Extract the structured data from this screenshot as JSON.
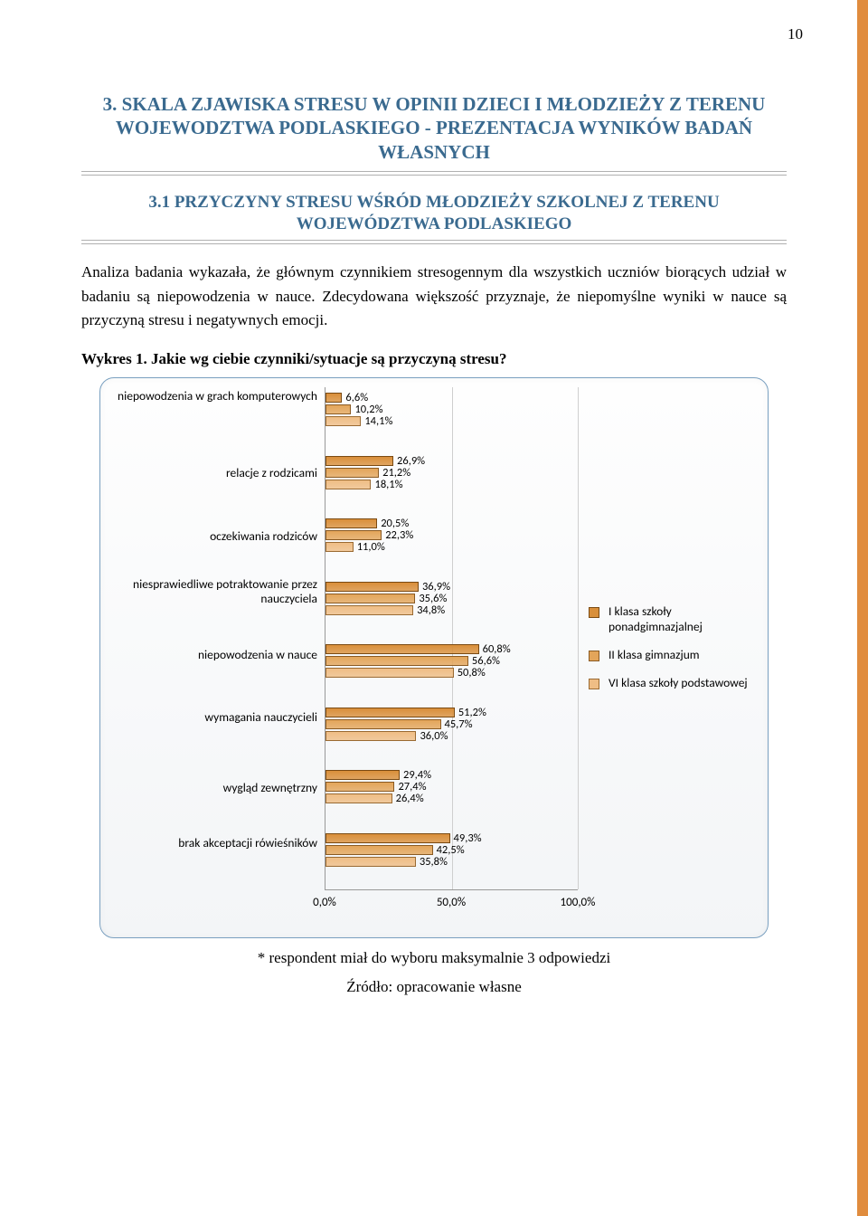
{
  "page_number": "10",
  "heading_main": "3. SKALA ZJAWISKA STRESU W OPINII DZIECI I MŁODZIEŻY Z TERENU WOJEWODZTWA PODLASKIEGO - PREZENTACJA WYNIKÓW BADAŃ WŁASNYCH",
  "heading_sub": "3.1 PRZYCZYNY STRESU WŚRÓD MŁODZIEŻY SZKOLNEJ Z TERENU WOJEWÓDZTWA PODLASKIEGO",
  "para1": "Analiza badania wykazała, że głównym czynnikiem stresogennym dla wszystkich uczniów biorących udział w badaniu są niepowodzenia w nauce. Zdecydowana większość przyznaje, że niepomyślne wyniki w nauce są przyczyną stresu i negatywnych emocji.",
  "chart_title": "Wykres 1. Jakie wg ciebie czynniki/sytuacje są przyczyną stresu?",
  "footnote1": "* respondent miał do wyboru maksymalnie 3 odpowiedzi",
  "footnote2": "Źródło: opracowanie własne",
  "chart": {
    "type": "bar-horizontal-grouped",
    "xlim": [
      0,
      100
    ],
    "xticks": [
      "0,0%",
      "50,0%",
      "100,0%"
    ],
    "xtick_positions": [
      0,
      50,
      100
    ],
    "grid_color": "#cfcfcf",
    "background_gradient": [
      "#fefefe",
      "#f3f5f7"
    ],
    "border_color": "#7aa0c0",
    "series": [
      {
        "name": "I klasa szkoły ponadgimnazjalnej",
        "color": "#d98f3a",
        "border": "#7a4a12"
      },
      {
        "name": "II klasa gimnazjum",
        "color": "#e3a55a",
        "border": "#8a5a22"
      },
      {
        "name": "VI klasa szkoły podstawowej",
        "color": "#efbd85",
        "border": "#9a6a32"
      }
    ],
    "categories": [
      {
        "label": "niepowodzenia w grach komputerowych",
        "values": [
          6.6,
          10.2,
          14.1
        ],
        "labels": [
          "6,6%",
          "10,2%",
          "14,1%"
        ]
      },
      {
        "label": "relacje z rodzicami",
        "values": [
          26.9,
          21.2,
          18.1
        ],
        "labels": [
          "26,9%",
          "21,2%",
          "18,1%"
        ]
      },
      {
        "label": "oczekiwania rodziców",
        "values": [
          20.5,
          22.3,
          11.0
        ],
        "labels": [
          "20,5%",
          "22,3%",
          "11,0%"
        ]
      },
      {
        "label": "niesprawiedliwe potraktowanie przez nauczyciela",
        "values": [
          36.9,
          35.6,
          34.8
        ],
        "labels": [
          "36,9%",
          "35,6%",
          "34,8%"
        ]
      },
      {
        "label": "niepowodzenia w nauce",
        "values": [
          60.8,
          56.6,
          50.8
        ],
        "labels": [
          "60,8%",
          "56,6%",
          "50,8%"
        ]
      },
      {
        "label": "wymagania nauczycieli",
        "values": [
          51.2,
          45.7,
          36.0
        ],
        "labels": [
          "51,2%",
          "45,7%",
          "36,0%"
        ]
      },
      {
        "label": "wygląd zewnętrzny",
        "values": [
          29.4,
          27.4,
          26.4
        ],
        "labels": [
          "29,4%",
          "27,4%",
          "26,4%"
        ]
      },
      {
        "label": "brak akceptacji rówieśników",
        "values": [
          49.3,
          42.5,
          35.8
        ],
        "labels": [
          "49,3%",
          "42,5%",
          "35,8%"
        ]
      }
    ],
    "label_fontsize": 13.5,
    "value_fontsize": 12.5
  }
}
